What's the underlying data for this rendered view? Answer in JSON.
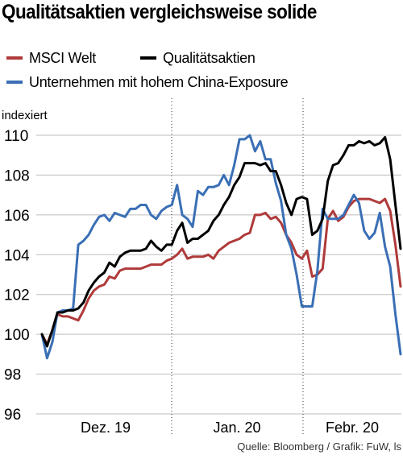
{
  "title": "Qualitätsaktien vergleichsweise solide",
  "source": "Quelle: Bloomberg / Grafik: FuW, ls",
  "chart_data": {
    "type": "line",
    "ylabel": "indexiert",
    "ylim": [
      96,
      110
    ],
    "yticks": [
      96,
      98,
      100,
      102,
      104,
      106,
      108,
      110
    ],
    "x_ticks": [
      "Dez. 19",
      "Jan. 20",
      "Febr. 20"
    ],
    "grid": "y-horizontal, dotted month separators",
    "legend_placement": "top",
    "series": [
      {
        "name": "MSCI Welt",
        "color": "#b03a3a",
        "values": [
          100,
          99.5,
          100.2,
          101.0,
          100.9,
          100.9,
          100.8,
          100.7,
          101.2,
          101.8,
          102.2,
          102.4,
          102.5,
          102.9,
          102.8,
          103.2,
          103.3,
          103.3,
          103.3,
          103.3,
          103.4,
          103.5,
          103.5,
          103.5,
          103.7,
          103.8,
          104.0,
          104.3,
          103.8,
          103.9,
          103.9,
          103.9,
          104.0,
          103.8,
          104.2,
          104.4,
          104.6,
          104.7,
          104.8,
          105.0,
          105.1,
          106.0,
          106.0,
          106.1,
          105.8,
          105.9,
          105.6,
          105.0,
          104.6,
          104.0,
          103.8,
          104.2,
          102.9,
          103.0,
          103.3,
          105.8,
          106.2,
          105.7,
          105.9,
          106.4,
          106.7,
          106.8,
          106.8,
          106.8,
          106.7,
          106.6,
          106.8,
          106.2,
          104.5,
          102.4
        ]
      },
      {
        "name": "Qualitätsaktien",
        "color": "#000000",
        "values": [
          100,
          99.4,
          100.2,
          101.1,
          101.1,
          101.2,
          101.2,
          101.3,
          101.6,
          102.2,
          102.6,
          102.9,
          103.1,
          103.6,
          103.4,
          103.9,
          104.1,
          104.2,
          104.2,
          104.2,
          104.3,
          104.7,
          104.4,
          104.2,
          104.5,
          104.5,
          105.2,
          105.6,
          104.6,
          104.8,
          104.8,
          105.0,
          105.2,
          105.7,
          106.0,
          106.5,
          106.9,
          107.5,
          107.9,
          108.6,
          108.6,
          108.6,
          108.5,
          108.6,
          108.2,
          108.2,
          107.5,
          106.6,
          106.0,
          106.8,
          106.9,
          106.8,
          105.0,
          105.2,
          105.8,
          107.7,
          108.5,
          108.6,
          109.0,
          109.5,
          109.5,
          109.7,
          109.6,
          109.7,
          109.5,
          109.6,
          109.9,
          108.8,
          106.5,
          104.3
        ]
      },
      {
        "name": "Unternehmen mit hohem China-Exposure",
        "color": "#3a6fb5",
        "values": [
          100,
          98.8,
          99.6,
          101.1,
          101.2,
          101.2,
          101.3,
          104.5,
          104.7,
          105.0,
          105.5,
          105.9,
          106.0,
          105.7,
          106.1,
          106.0,
          105.9,
          106.3,
          106.3,
          106.5,
          106.5,
          106.0,
          105.8,
          106.2,
          106.4,
          106.5,
          107.5,
          106.0,
          105.8,
          105.4,
          107.2,
          107.0,
          107.4,
          107.4,
          107.5,
          108.0,
          107.5,
          108.5,
          109.8,
          109.8,
          110.0,
          109.2,
          109.7,
          108.8,
          108.8,
          107.6,
          106.7,
          105.0,
          104.3,
          103.0,
          101.4,
          101.4,
          101.4,
          103.2,
          106.3,
          105.8,
          105.8,
          105.8,
          106.0,
          106.5,
          107.0,
          106.6,
          105.2,
          104.8,
          105.1,
          106.1,
          104.4,
          103.4,
          101.0,
          99.0
        ]
      }
    ]
  }
}
